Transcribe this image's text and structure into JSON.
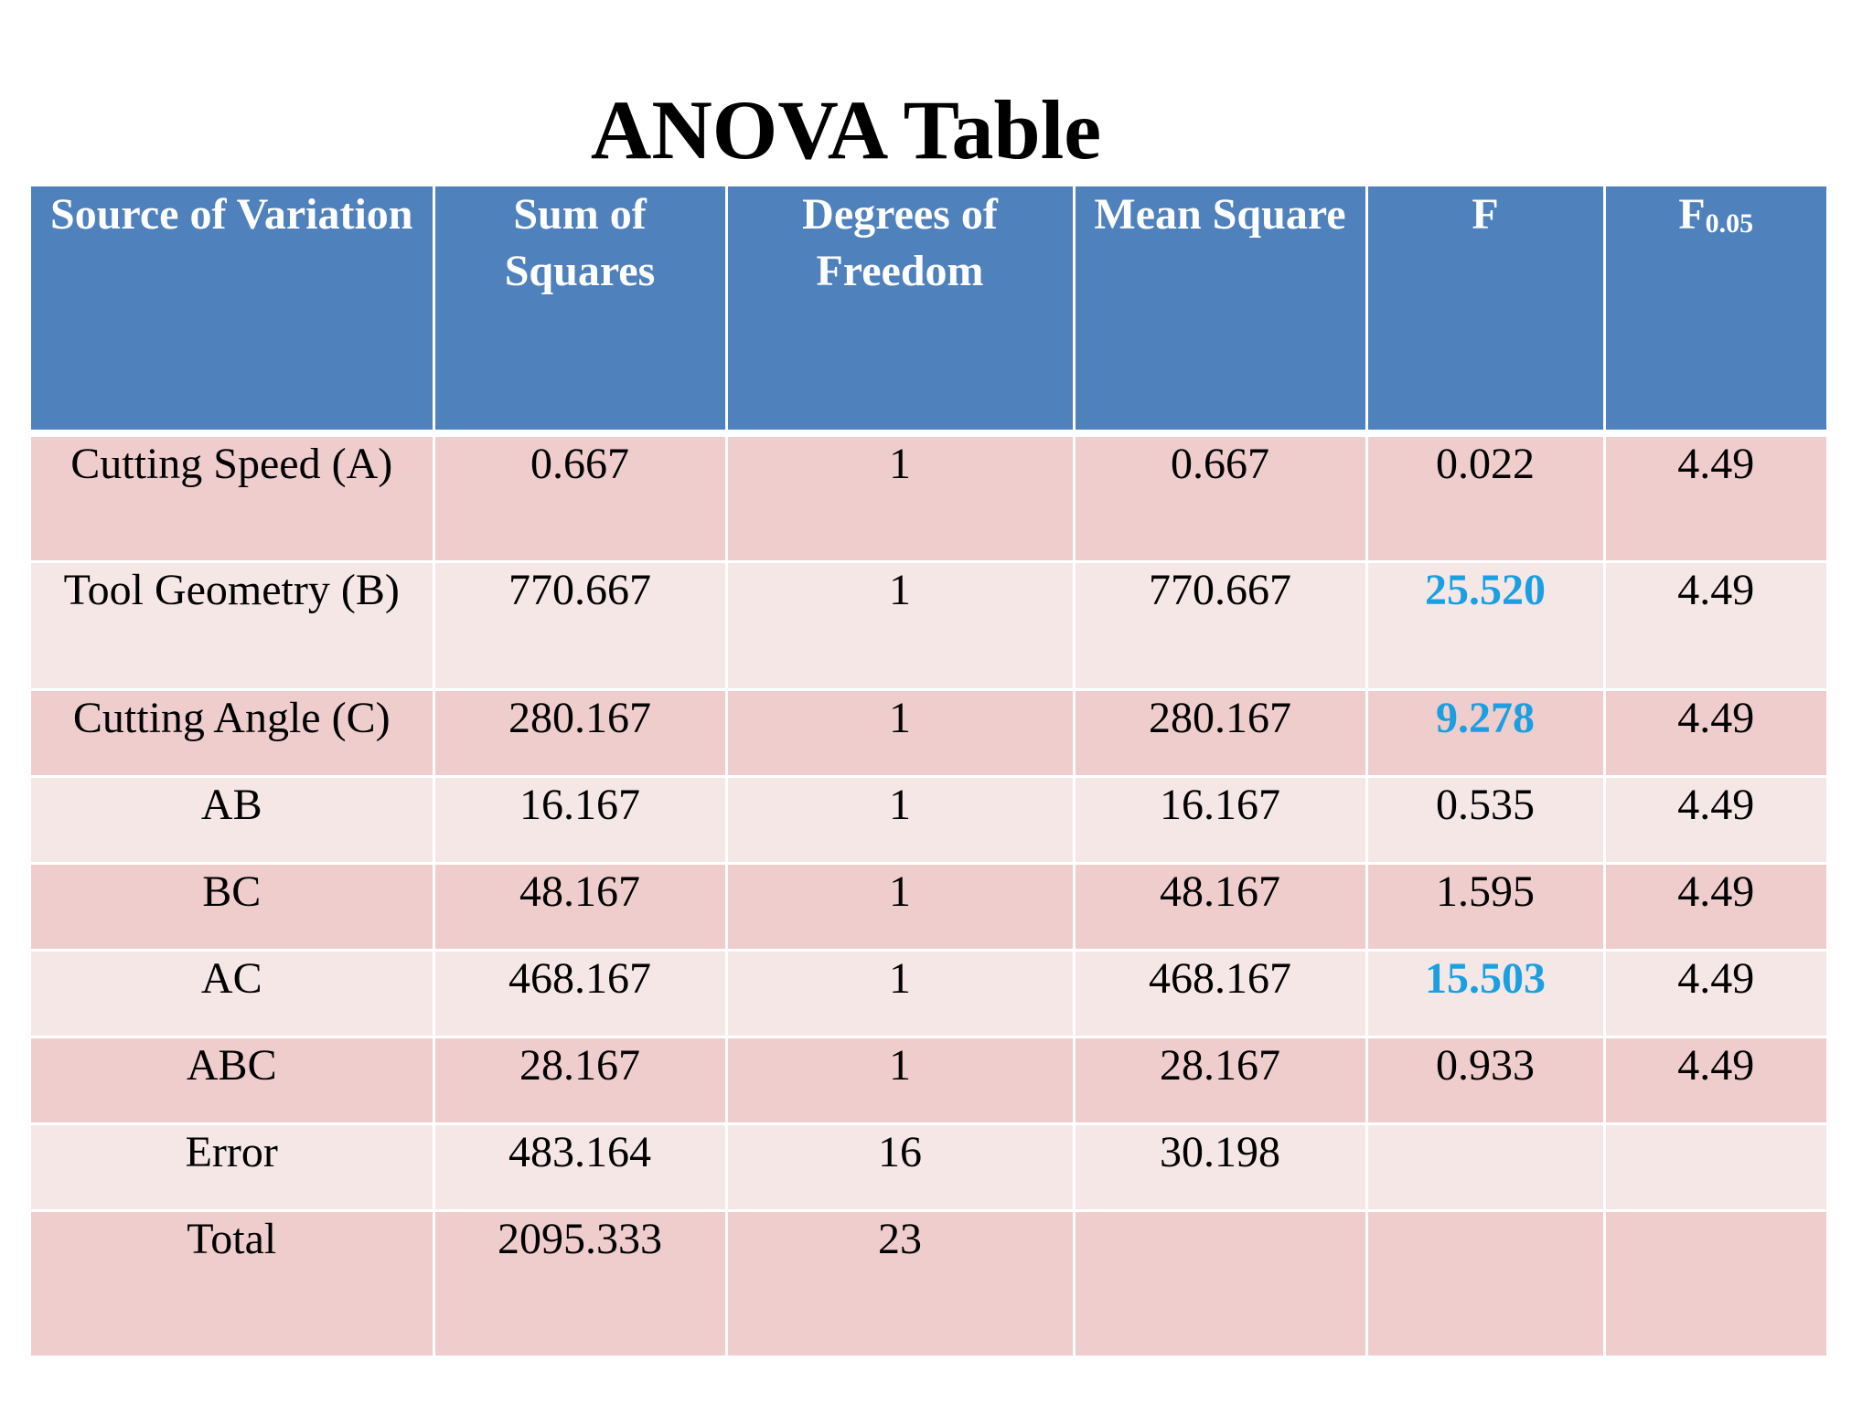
{
  "title": "ANOVA Table",
  "colors": {
    "header_bg": "#4f81bd",
    "row_odd": "#efcdcd",
    "row_even": "#f6e7e7",
    "significant": "#1aa0e0"
  },
  "table": {
    "headers": {
      "source": "Source of Variation",
      "ss": "Sum of Squares",
      "df": "Degrees of Freedom",
      "ms": "Mean Square",
      "f": "F",
      "fcrit_main": "F",
      "fcrit_sub": "0.05"
    },
    "rows": [
      {
        "source": "Cutting Speed (A)",
        "ss": "0.667",
        "df": "1",
        "ms": "0.667",
        "f": "0.022",
        "fcrit": "4.49"
      },
      {
        "source": "Tool Geometry (B)",
        "ss": "770.667",
        "df": "1",
        "ms": "770.667",
        "f": "25.520",
        "fcrit": "4.49"
      },
      {
        "source": "Cutting Angle (C)",
        "ss": "280.167",
        "df": "1",
        "ms": "280.167",
        "f": "9.278",
        "fcrit": "4.49"
      },
      {
        "source": "AB",
        "ss": "16.167",
        "df": "1",
        "ms": "16.167",
        "f": "0.535",
        "fcrit": "4.49"
      },
      {
        "source": "BC",
        "ss": "48.167",
        "df": "1",
        "ms": "48.167",
        "f": "1.595",
        "fcrit": "4.49"
      },
      {
        "source": "AC",
        "ss": "468.167",
        "df": "1",
        "ms": "468.167",
        "f": "15.503",
        "fcrit": "4.49"
      },
      {
        "source": "ABC",
        "ss": "28.167",
        "df": "1",
        "ms": "28.167",
        "f": "0.933",
        "fcrit": "4.49"
      },
      {
        "source": "Error",
        "ss": "483.164",
        "df": "16",
        "ms": "30.198",
        "f": "",
        "fcrit": ""
      },
      {
        "source": "Total",
        "ss": "2095.333",
        "df": "23",
        "ms": "",
        "f": "",
        "fcrit": ""
      }
    ]
  }
}
